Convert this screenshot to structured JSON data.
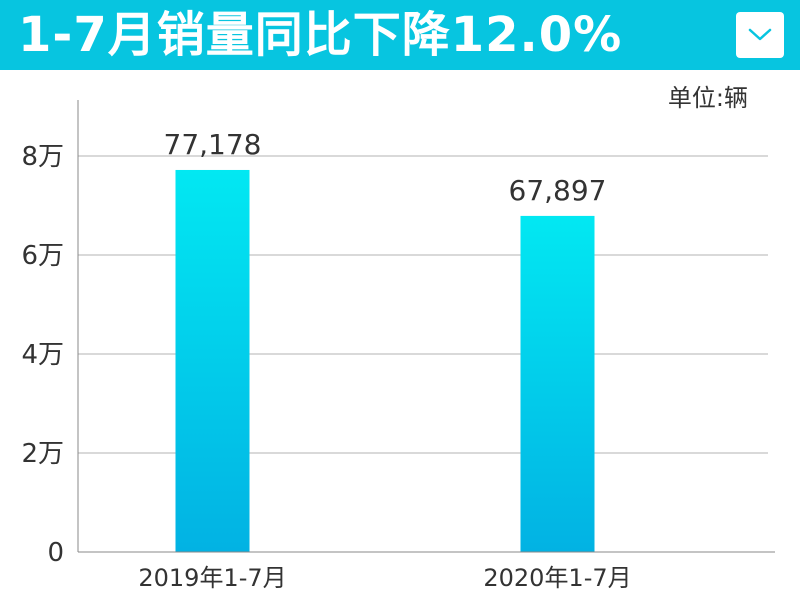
{
  "header": {
    "title": "1-7月销量同比下降12.0%",
    "dropdown_icon": "chevron-down-icon",
    "background": "#07c5e0"
  },
  "chart_data": {
    "type": "bar",
    "title": "1-7月销量同比下降12.0%",
    "unit_label": "单位:辆",
    "categories": [
      "2019年1-7月",
      "2020年1-7月"
    ],
    "values": [
      77178,
      67897
    ],
    "value_labels": [
      "77,178",
      "67,897"
    ],
    "ylim": [
      0,
      88000
    ],
    "yticks": [
      0,
      20000,
      40000,
      60000,
      80000
    ],
    "ytick_labels": [
      "0",
      "2万",
      "4万",
      "6万",
      "8万"
    ],
    "grid": true,
    "bar_gradient": [
      "#02e8f2",
      "#02b2e3"
    ]
  }
}
